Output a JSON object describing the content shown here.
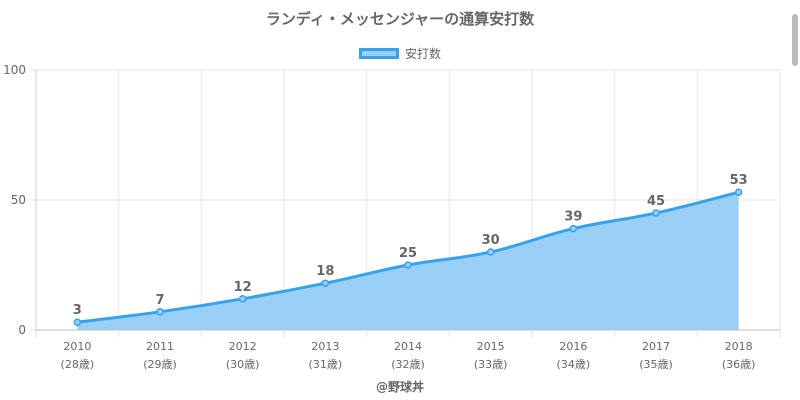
{
  "chart_data": {
    "type": "area",
    "title": "ランディ・メッセンジャーの通算安打数",
    "categories": [
      "2010",
      "2011",
      "2012",
      "2013",
      "2014",
      "2015",
      "2016",
      "2017",
      "2018"
    ],
    "category_sublabels": [
      "(28歳)",
      "(29歳)",
      "(30歳)",
      "(31歳)",
      "(32歳)",
      "(33歳)",
      "(34歳)",
      "(35歳)",
      "(36歳)"
    ],
    "series": [
      {
        "name": "安打数",
        "values": [
          3,
          7,
          12,
          18,
          25,
          30,
          39,
          45,
          53
        ]
      }
    ],
    "ylim": [
      0,
      100
    ],
    "yticks": [
      0,
      50,
      100
    ],
    "legend": "top-center",
    "grid": true,
    "colors": {
      "line": "#36a2eb",
      "fill": "#9ad0f5",
      "grid": "#e6e6e6",
      "text": "#666666"
    },
    "credit": "@野球丼"
  }
}
